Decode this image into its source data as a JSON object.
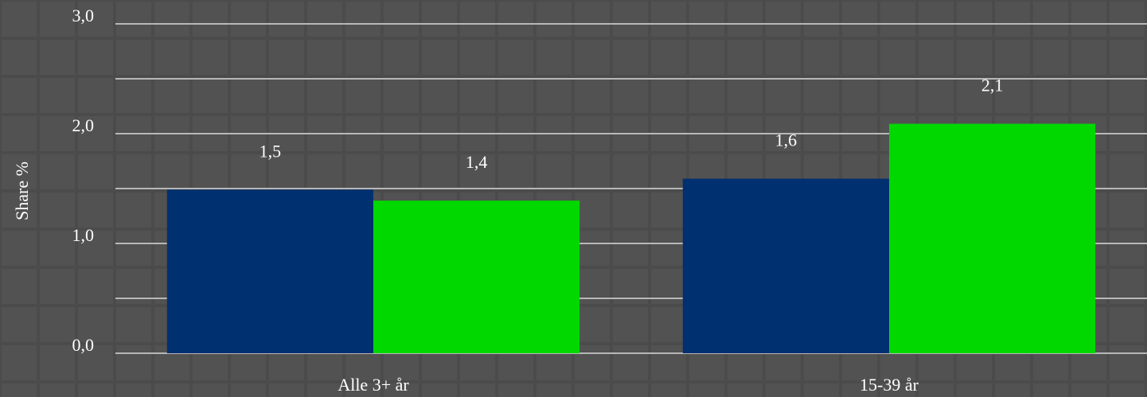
{
  "chart_data": {
    "type": "bar",
    "y_label": "Share %",
    "categories": [
      "Alle 3+ år",
      "15-39 år"
    ],
    "series": [
      {
        "color": "#003070",
        "values": [
          1.49,
          1.59
        ],
        "value_labels": [
          "1,5",
          "1,6"
        ]
      },
      {
        "color": "#00d800",
        "values": [
          1.39,
          2.09
        ],
        "value_labels": [
          "1,4",
          "2,1"
        ]
      }
    ],
    "ylim": [
      0,
      3
    ],
    "yticks": [
      {
        "value": 0,
        "label": "0,0"
      },
      {
        "value": 0.5,
        "label": null
      },
      {
        "value": 1,
        "label": "1,0"
      },
      {
        "value": 1.5,
        "label": null
      },
      {
        "value": 2,
        "label": "2,0"
      },
      {
        "value": 2.5,
        "label": null
      },
      {
        "value": 3,
        "label": "3,0"
      }
    ],
    "grid": true
  }
}
